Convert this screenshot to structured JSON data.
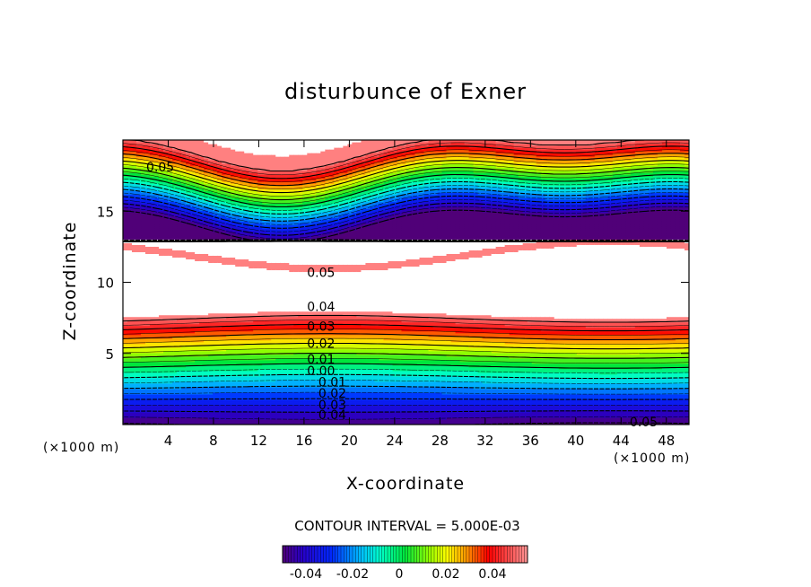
{
  "chart_data": {
    "type": "heatmap",
    "title": "disturbunce of Exner",
    "xlabel": "X-coordinate",
    "ylabel": "Z-coordinate",
    "x_unit_left": "(×1000 m)",
    "x_unit_right": "(×1000 m)",
    "xlim": [
      0,
      50
    ],
    "ylim": [
      0,
      20
    ],
    "x_ticks": [
      4,
      8,
      12,
      16,
      20,
      24,
      28,
      32,
      36,
      40,
      44,
      48
    ],
    "y_ticks": [
      5,
      10,
      15
    ],
    "contour_interval_text": "CONTOUR INTERVAL = 5.000E-03",
    "contour_interval": 0.005,
    "color_range": [
      -0.05,
      0.055
    ],
    "colorbar_ticks": [
      "-0.04",
      "-0.02",
      "0",
      "0.02",
      "0.04"
    ],
    "contour_labels": [
      {
        "text": "0.05",
        "x": 3.3,
        "z": 18.1
      },
      {
        "text": "0.05",
        "x": 17.5,
        "z": 10.7
      },
      {
        "text": "0.04",
        "x": 17.5,
        "z": 8.3
      },
      {
        "text": "0.03",
        "x": 17.5,
        "z": 6.9
      },
      {
        "text": "0.02",
        "x": 17.5,
        "z": 5.7
      },
      {
        "text": "0.01",
        "x": 17.5,
        "z": 4.6
      },
      {
        "text": "0.00",
        "x": 17.5,
        "z": 3.8
      },
      {
        "text": "0.01",
        "x": 18.5,
        "z": 3.0
      },
      {
        "text": "0.02",
        "x": 18.5,
        "z": 2.2
      },
      {
        "text": "0.03",
        "x": 18.5,
        "z": 1.4
      },
      {
        "text": "0.04",
        "x": 18.5,
        "z": 0.7
      },
      {
        "text": "0.05",
        "x": 46.0,
        "z": 0.2
      }
    ],
    "legend": "none",
    "grid": false
  }
}
